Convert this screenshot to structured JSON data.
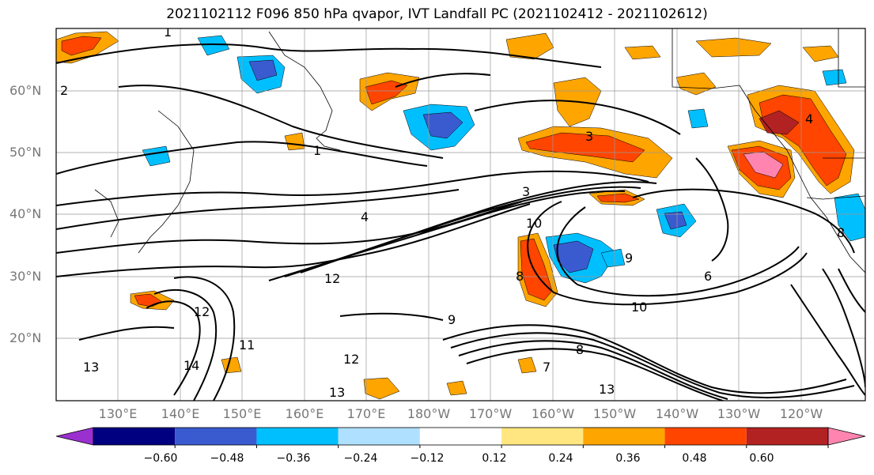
{
  "title": "2021102112 F096 850 hPa qvapor, IVT Landfall PC (2021102412 - 2021102612)",
  "map": {
    "lat_labels": [
      "60°N",
      "50°N",
      "40°N",
      "30°N",
      "20°N"
    ],
    "lon_labels": [
      "130°E",
      "140°E",
      "150°E",
      "160°E",
      "170°E",
      "180°W",
      "170°W",
      "160°W",
      "150°W",
      "140°W",
      "130°W",
      "120°W"
    ],
    "contour_labels": [
      "1",
      "1",
      "2",
      "3",
      "4",
      "4",
      "3",
      "10",
      "8",
      "9",
      "6",
      "10",
      "12",
      "12",
      "13",
      "14",
      "9",
      "8",
      "7",
      "13",
      "12",
      "13",
      "11",
      "8"
    ]
  },
  "colorbar": {
    "ticks": [
      "−0.60",
      "−0.48",
      "−0.36",
      "−0.24",
      "−0.12",
      "0.12",
      "0.24",
      "0.36",
      "0.48",
      "0.60"
    ],
    "colors": [
      "#9b30d0",
      "#000080",
      "#3a5bd0",
      "#00bfff",
      "#b0e0ff",
      "#ffffff",
      "#ffe680",
      "#ffa500",
      "#ff4500",
      "#b22222",
      "#ff85b0"
    ]
  }
}
